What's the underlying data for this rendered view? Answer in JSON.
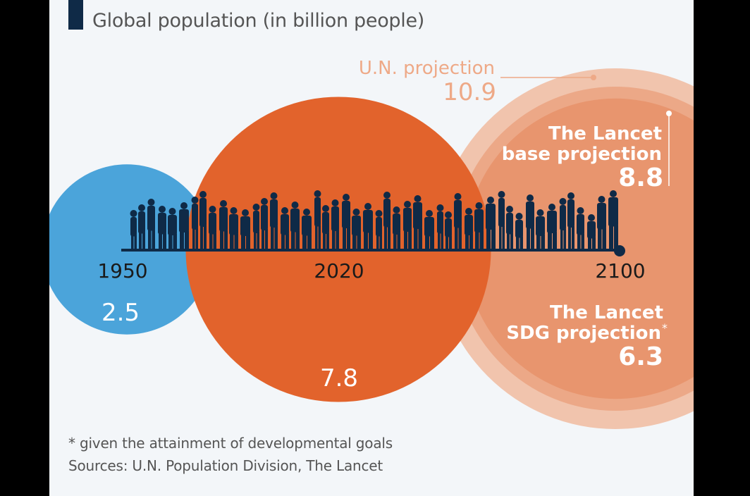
{
  "subtitle": "Global population (in billion people)",
  "chart_data": {
    "type": "bubble",
    "unit": "billion people",
    "points": [
      {
        "year": "1950",
        "label": "",
        "value": 2.5,
        "color": "#4ba4da"
      },
      {
        "year": "2020",
        "label": "",
        "value": 7.8,
        "color": "#e2632c"
      },
      {
        "year": "2100",
        "label": "U.N. projection",
        "value": 10.9,
        "color": "#f1c4ad"
      },
      {
        "year": "2100",
        "label": "The Lancet base projection",
        "value": 8.8,
        "color": "#eca887"
      },
      {
        "year": "2100",
        "label": "The Lancet SDG projection*",
        "value": 6.3,
        "color": "#e8956e"
      }
    ],
    "label_colors": {
      "un": "#eea987",
      "lancet": "#ffffff",
      "year": "#1a1a1a",
      "timeline": "#0f2a47"
    }
  },
  "labels": {
    "year_1950": "1950",
    "year_2020": "2020",
    "year_2100": "2100",
    "v1950": "2.5",
    "v2020": "7.8",
    "un_label": "U.N. projection",
    "un_value": "10.9",
    "base_line1": "The Lancet",
    "base_line2": "base projection",
    "base_value": "8.8",
    "sdg_line1": "The Lancet",
    "sdg_line2": "SDG projection",
    "sdg_star": "*",
    "sdg_value": "6.3"
  },
  "footnote": "* given the attainment of developmental goals",
  "sources": "Sources: U.N. Population Division, The Lancet"
}
